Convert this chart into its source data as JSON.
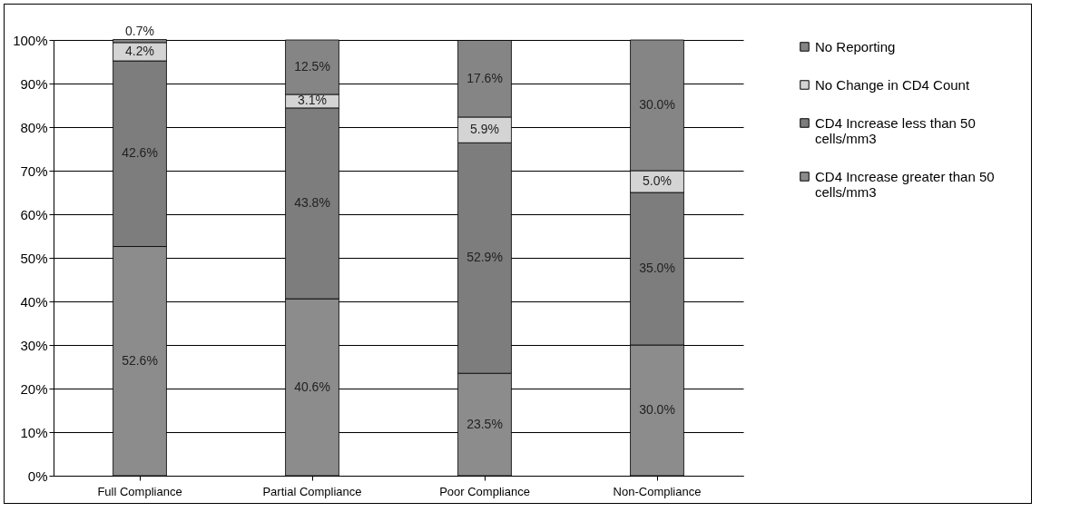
{
  "chart_data": {
    "type": "bar",
    "stacked": true,
    "categories": [
      "Full Compliance",
      "Partial Compliance",
      "Poor Compliance",
      "Non-Compliance"
    ],
    "series": [
      {
        "name": "CD4 Increase greater than 50 cells/mm3",
        "color": "#8c8c8c",
        "values": [
          52.6,
          40.6,
          23.5,
          30.0
        ],
        "value_labels": [
          "52.6%",
          "40.6%",
          "23.5%",
          "30.0%"
        ]
      },
      {
        "name": "CD4 Increase less than 50 cells/mm3",
        "color": "#7d7d7d",
        "values": [
          42.6,
          43.8,
          52.9,
          35.0
        ],
        "value_labels": [
          "42.6%",
          "43.8%",
          "52.9%",
          "35.0%"
        ]
      },
      {
        "name": "No Change in CD4 Count",
        "color": "#d4d4d4",
        "values": [
          4.2,
          3.1,
          5.9,
          5.0
        ],
        "value_labels": [
          "4.2%",
          "3.1%",
          "5.9%",
          "5.0%"
        ]
      },
      {
        "name": "No Reporting",
        "color": "#858585",
        "values": [
          0.7,
          12.5,
          17.6,
          30.0
        ],
        "value_labels": [
          "0.7%",
          "12.5%",
          "17.6%",
          "30.0%"
        ]
      }
    ],
    "ylim": [
      0,
      100
    ],
    "yticks": [
      {
        "value": 0,
        "label": "0%"
      },
      {
        "value": 10,
        "label": "10%"
      },
      {
        "value": 20,
        "label": "20%"
      },
      {
        "value": 30,
        "label": "30%"
      },
      {
        "value": 40,
        "label": "40%"
      },
      {
        "value": 50,
        "label": "50%"
      },
      {
        "value": 60,
        "label": "60%"
      },
      {
        "value": 70,
        "label": "70%"
      },
      {
        "value": 80,
        "label": "80%"
      },
      {
        "value": 90,
        "label": "90%"
      },
      {
        "value": 100,
        "label": "100%"
      }
    ],
    "grid": "y",
    "legend": "right"
  }
}
